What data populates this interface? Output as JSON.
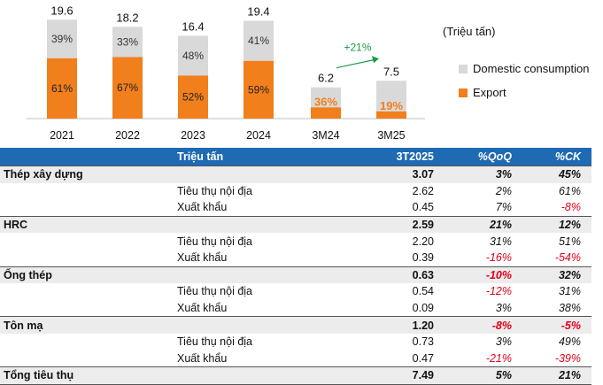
{
  "chart_data": {
    "type": "bar",
    "stacked": true,
    "categories": [
      "2021",
      "2022",
      "2023",
      "2024",
      "3M24",
      "3M25"
    ],
    "totals": [
      "19.6",
      "18.2",
      "16.4",
      "19.4",
      "6.2",
      "7.5"
    ],
    "series": [
      {
        "name": "Export",
        "color": "#f07f1c",
        "values_pct": [
          61,
          67,
          52,
          59,
          36,
          19
        ],
        "labels": [
          "61%",
          "67%",
          "52%",
          "59%",
          "36%",
          "19%"
        ]
      },
      {
        "name": "Domestic consumption",
        "color": "#d9d9d9",
        "values_pct": [
          39,
          33,
          48,
          41,
          64,
          81
        ],
        "labels": [
          "39%",
          "33%",
          "48%",
          "41%",
          "",
          ""
        ]
      }
    ],
    "unit": "(Triệu tấn)",
    "annotation": {
      "text": "+21%",
      "color": "#1a9a46"
    },
    "legend": {
      "domestic": "Domestic consumption",
      "export": "Export"
    }
  },
  "table": {
    "headers": {
      "label": "Triệu tấn",
      "col1": "3T2025",
      "col2": "%QoQ",
      "col3": "%CK"
    },
    "rows": [
      {
        "type": "main",
        "name": "Thép xây dựng",
        "v": "3.07",
        "q": "3%",
        "ck": "45%"
      },
      {
        "type": "sub",
        "name": "Tiêu thụ nội địa",
        "v": "2.62",
        "q": "2%",
        "ck": "61%"
      },
      {
        "type": "sub",
        "name": "Xuất khẩu",
        "v": "0.45",
        "q": "7%",
        "ck": "-8%"
      },
      {
        "type": "main",
        "name": "HRC",
        "v": "2.59",
        "q": "21%",
        "ck": "12%"
      },
      {
        "type": "sub",
        "name": "Tiêu thụ nội địa",
        "v": "2.20",
        "q": "31%",
        "ck": "51%"
      },
      {
        "type": "sub",
        "name": "Xuất khẩu",
        "v": "0.39",
        "q": "-16%",
        "ck": "-54%"
      },
      {
        "type": "main",
        "name": "Ống thép",
        "v": "0.63",
        "q": "-10%",
        "ck": "32%"
      },
      {
        "type": "sub",
        "name": "Tiêu thụ nội địa",
        "v": "0.54",
        "q": "-12%",
        "ck": "31%"
      },
      {
        "type": "sub",
        "name": "Xuất khẩu",
        "v": "0.09",
        "q": "3%",
        "ck": "38%"
      },
      {
        "type": "main",
        "name": "Tôn mạ",
        "v": "1.20",
        "q": "-8%",
        "ck": "-5%"
      },
      {
        "type": "sub",
        "name": "Tiêu thụ nội địa",
        "v": "0.73",
        "q": "3%",
        "ck": "49%"
      },
      {
        "type": "sub",
        "name": "Xuất khẩu",
        "v": "0.47",
        "q": "-21%",
        "ck": "-39%"
      },
      {
        "type": "main",
        "name": "Tổng tiêu thụ",
        "v": "7.49",
        "q": "5%",
        "ck": "21%"
      }
    ]
  }
}
